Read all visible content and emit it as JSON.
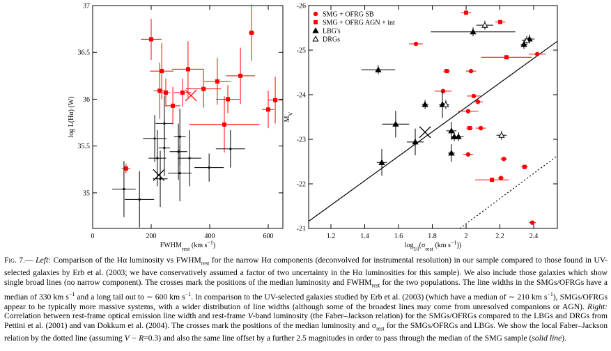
{
  "chart_data": [
    {
      "type": "scatter",
      "xlabel": [
        {
          "text": "FWHM"
        },
        {
          "text": "rest",
          "style": "sub"
        },
        {
          "text": " (km s"
        },
        {
          "text": "−1",
          "style": "sup"
        },
        {
          "text": ")"
        }
      ],
      "ylabel": [
        {
          "text": "log L(Hα) (W)"
        }
      ],
      "xlim": [
        0,
        650
      ],
      "xticks": [
        0,
        200,
        400,
        600
      ],
      "ylim": [
        34.62,
        37
      ],
      "yticks": [
        35,
        35.5,
        36,
        36.5,
        37
      ],
      "series": [
        {
          "color": "#ff0000",
          "marker": "square",
          "x": [
            200,
            236,
            229,
            250,
            274,
            307,
            379,
            426,
            462,
            505,
            543,
            600,
            624,
            450,
            114,
            326
          ],
          "values": [
            36.64,
            36.3,
            36.09,
            36.07,
            35.93,
            36.07,
            36.11,
            36.19,
            36.0,
            36.25,
            36.71,
            35.89,
            35.99,
            35.73,
            35.26,
            36.32
          ],
          "xerr": [
            35,
            40,
            20,
            15,
            25,
            30,
            60,
            45,
            40,
            50,
            10,
            20,
            25,
            120,
            15,
            55
          ],
          "yerr": [
            0.22,
            0.3,
            0.3,
            0.15,
            0.2,
            0.15,
            0.2,
            0.25,
            0.15,
            0.3,
            0.3,
            0.2,
            0.25,
            0.3,
            0.05,
            0.3
          ]
        },
        {
          "color": "#000000",
          "marker": "dot",
          "x": [
            245,
            212,
            245,
            293,
            331,
            398,
            107,
            160,
            221,
            298,
            231,
            298,
            471
          ],
          "values": [
            35.74,
            35.58,
            35.48,
            35.44,
            35.37,
            35.27,
            35.04,
            34.93,
            35.37,
            35.21,
            35.15,
            35.6,
            35.47
          ],
          "xerr": [
            30,
            40,
            20,
            30,
            40,
            50,
            40,
            50,
            30,
            40,
            25,
            20,
            50
          ],
          "yerr": [
            0.3,
            0.25,
            0.3,
            0.3,
            0.3,
            0.15,
            0.3,
            0.3,
            0.3,
            0.3,
            0.3,
            0.3,
            0.2
          ]
        },
        {
          "color": "#ff0000",
          "marker": "x",
          "x": [
            336
          ],
          "values": [
            36.04
          ]
        },
        {
          "color": "#000000",
          "marker": "x",
          "x": [
            226
          ],
          "values": [
            35.19
          ]
        }
      ]
    },
    {
      "type": "scatter",
      "xlabel": [
        {
          "text": "log"
        },
        {
          "text": "10",
          "style": "sub"
        },
        {
          "text": "(σ"
        },
        {
          "text": "rest",
          "style": "sub"
        },
        {
          "text": " (km s"
        },
        {
          "text": "−1",
          "style": "sup"
        },
        {
          "text": "))"
        }
      ],
      "ylabel": [
        {
          "text": "M"
        },
        {
          "text": "V",
          "style": "sub"
        }
      ],
      "xlim": [
        1.068,
        2.54
      ],
      "xticks": [
        1.2,
        1.4,
        1.6,
        1.8,
        2,
        2.2,
        2.4
      ],
      "ylim": [
        -21,
        -26
      ],
      "yticks": [
        -21,
        -22,
        -23,
        -24,
        -25,
        -26
      ],
      "series": [
        {
          "name": "SMG + OFRG SB",
          "color": "#ff0000",
          "marker": "circle",
          "x": [
            1.703,
            1.864,
            2.029,
            2.012,
            2.045,
            2.087,
            2.223,
            2.206,
            2.012,
            2.421,
            2.392,
            2.07
          ],
          "values": [
            -25.14,
            -24.08,
            -24.53,
            -23.63,
            -23.97,
            -23.25,
            -22.56,
            -22.13,
            -22.66,
            -24.91,
            -21.13,
            -23.84
          ],
          "xerr": [
            0.04,
            0.05,
            0.03,
            0.06,
            0.04,
            0.03,
            0.02,
            0.02,
            0.03,
            0.05,
            0.02,
            0.03
          ],
          "yerr": [
            0.03,
            0.03,
            0.03,
            0.03,
            0.03,
            0.03,
            0.03,
            0.03,
            0.03,
            0.03,
            0.03,
            0.03
          ]
        },
        {
          "name": "SMG + OFRG AGN + int",
          "color": "#ff0000",
          "marker": "square",
          "x": [
            2.0,
            2.202,
            1.885,
            2.239,
            2.021,
            2.153,
            2.346
          ],
          "values": [
            -25.84,
            -25.63,
            -24.53,
            -24.84,
            -23.25,
            -22.09,
            -22.38
          ],
          "xerr": [
            0.03,
            0.03,
            0.02,
            0.15,
            0.02,
            0.1,
            0.02
          ],
          "yerr": [
            0.03,
            0.03,
            0.03,
            0.03,
            0.03,
            0.03,
            0.03
          ]
        },
        {
          "name": "LBG's",
          "color": "#000000",
          "marker": "triangle",
          "x": [
            1.48,
            1.501,
            1.583,
            1.699,
            1.757,
            1.86,
            1.913,
            1.93,
            1.955,
            2.041,
            2.342,
            2.375,
            1.913
          ],
          "values": [
            -24.56,
            -22.48,
            -23.34,
            -22.94,
            -23.78,
            -23.78,
            -23.19,
            -23.06,
            -23.06,
            -25.41,
            -25.13,
            -25.25,
            -22.69
          ],
          "xerr": [
            0.1,
            0.03,
            0.08,
            0.05,
            0.02,
            0.02,
            0.03,
            0.02,
            0.03,
            0.25,
            0.02,
            0.03,
            0.02
          ],
          "yerr": [
            0.1,
            0.3,
            0.3,
            0.3,
            0.1,
            0.3,
            0.2,
            0.1,
            0.1,
            0.1,
            0.1,
            0.1,
            0.2
          ]
        },
        {
          "name": "DRGs",
          "color": "#000000",
          "marker": "triangle-open",
          "x": [
            1.88,
            2.111,
            2.359,
            2.21
          ],
          "values": [
            -23.78,
            -25.56,
            -25.22,
            -23.09
          ],
          "xerr": [
            0.02,
            0.05,
            0.03,
            0.03
          ],
          "yerr": [
            0.1,
            0.1,
            0.1,
            0.1
          ]
        },
        {
          "color": "#000000",
          "marker": "x",
          "x": [
            1.757
          ],
          "values": [
            -23.16
          ]
        }
      ],
      "lines": [
        {
          "style": "solid",
          "x": [
            1.068,
            2.54
          ],
          "values": [
            -21.16,
            -25.2
          ]
        },
        {
          "style": "dotted",
          "x": [
            1.963,
            2.54
          ],
          "values": [
            -21,
            -22.63
          ]
        }
      ],
      "legend": "upper left"
    }
  ],
  "caption": [
    {
      "text": "Fig. 7.",
      "style": "sc"
    },
    {
      "text": "— "
    },
    {
      "text": "Left:",
      "style": "i"
    },
    {
      "text": " Comparison of the Hα luminosity vs FWHM"
    },
    {
      "text": "rest",
      "style": "sub"
    },
    {
      "text": " for the narrow Hα components (deconvolved for instrumental resolution) in our sample compared to those found in UV-selected galaxies by Erb et al. (2003; we have conservatively assumed a factor of two uncertainty in the Hα luminosities for this sample). We also include those galaxies which show single broad lines (no narrow component). The crosses mark the positions of the median luminosity and FWHM"
    },
    {
      "text": "rest",
      "style": "sub"
    },
    {
      "text": " for the two populations. The line widths in the SMGs/OFRGs have a median of 330 km s"
    },
    {
      "text": "−1",
      "style": "sup"
    },
    {
      "text": " and a long tail out to ∼ 600 km s"
    },
    {
      "text": "−1",
      "style": "sup"
    },
    {
      "text": ". In comparison to the UV-selected galaxies studied by Erb et al. (2003) (which have a median of ∼ 210 km s"
    },
    {
      "text": "−1",
      "style": "sup"
    },
    {
      "text": "), SMGs/OFRGs appear to be typically more massive systems, with a wider distribution of line widths (although some of the broadest lines may come from unresolved companions or AGN). "
    },
    {
      "text": "Right:",
      "style": "i"
    },
    {
      "text": " Correlation between rest-frame optical emission line width and rest-frame "
    },
    {
      "text": "V",
      "style": "i"
    },
    {
      "text": "-band luminosity (the Faber–Jackson relation) for the SMGs/OFRGs compared to the LBGs and DRGs from Pettini et al. (2001) and van Dokkum et al. (2004). The crosses mark the positions of the median luminosity and σ"
    },
    {
      "text": "rest",
      "style": "sub"
    },
    {
      "text": " for the SMGs/OFRGs and LBGs. We show the local Faber–Jackson relation by the dotted line (assuming "
    },
    {
      "text": "V − R",
      "style": "i"
    },
    {
      "text": "=0.3) and also the same line offset by a further 2.5 magnitudes in order to pass through the median of the SMG sample ("
    },
    {
      "text": "solid line",
      "style": "i"
    },
    {
      "text": ")."
    }
  ]
}
